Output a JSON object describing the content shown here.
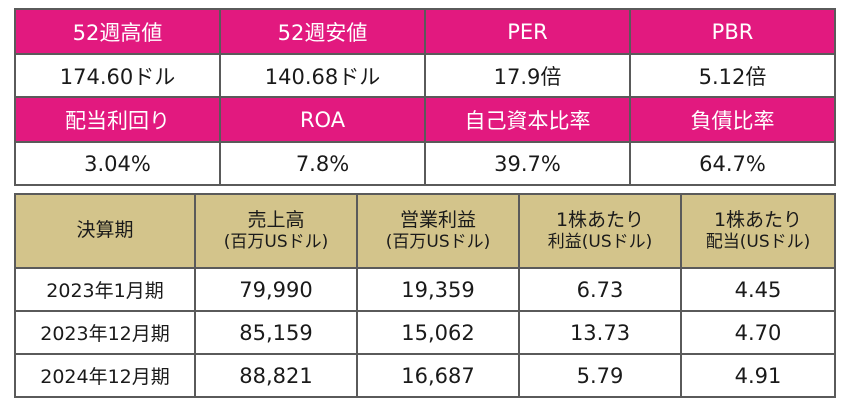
{
  "stats": {
    "row1_headers": [
      "52週高値",
      "52週安値",
      "PER",
      "PBR"
    ],
    "row1_values": [
      "174.60ドル",
      "140.68ドル",
      "17.9倍",
      "5.12倍"
    ],
    "row2_headers": [
      "配当利回り",
      "ROA",
      "自己資本比率",
      "負債比率"
    ],
    "row2_values": [
      "3.04%",
      "7.8%",
      "39.7%",
      "64.7%"
    ]
  },
  "results": {
    "headers": [
      {
        "line1": "決算期",
        "line2": ""
      },
      {
        "line1": "売上高",
        "line2": "(百万USドル)"
      },
      {
        "line1": "営業利益",
        "line2": "(百万USドル)"
      },
      {
        "line1": "1株あたり",
        "line2": "利益(USドル)"
      },
      {
        "line1": "1株あたり",
        "line2": "配当(USドル)"
      }
    ],
    "rows": [
      {
        "period": "2023年1月期",
        "revenue": "79,990",
        "operating_income": "19,359",
        "eps": "6.73",
        "dps": "4.45"
      },
      {
        "period": "2023年12月期",
        "revenue": "85,159",
        "operating_income": "15,062",
        "eps": "13.73",
        "dps": "4.70"
      },
      {
        "period": "2024年12月期",
        "revenue": "88,821",
        "operating_income": "16,687",
        "eps": "5.79",
        "dps": "4.91"
      }
    ]
  },
  "colors": {
    "header_pink": "#e2197f",
    "header_gold": "#d3c48b",
    "border": "#5a5a5a"
  }
}
